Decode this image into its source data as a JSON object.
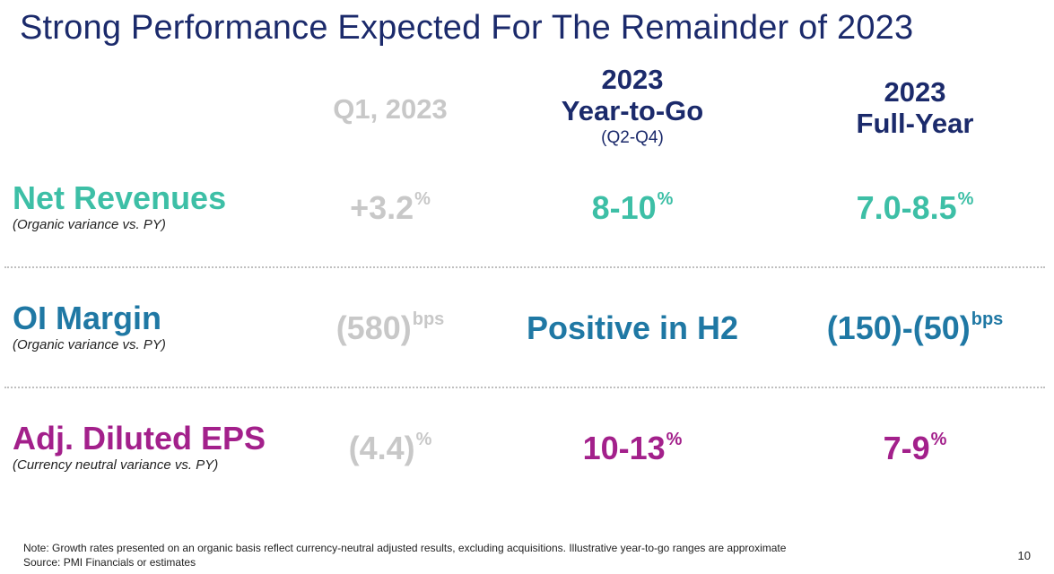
{
  "title": "Strong Performance Expected For The Remainder of 2023",
  "columns": {
    "q1": "Q1, 2023",
    "ytg_year": "2023",
    "ytg_label": "Year-to-Go",
    "ytg_sub": "(Q2-Q4)",
    "fy_year": "2023",
    "fy_label": "Full-Year"
  },
  "rows": [
    {
      "name": "Net Revenues",
      "desc": "(Organic variance vs. PY)",
      "color": "#3dbfa6",
      "q1": "+3.2",
      "q1_unit": "%",
      "ytg": "8-10",
      "ytg_unit": "%",
      "fy": "7.0-8.5",
      "fy_unit": "%"
    },
    {
      "name": "OI Margin",
      "desc": "(Organic variance vs. PY)",
      "color": "#1f78a4",
      "q1": "(580)",
      "q1_unit": "bps",
      "ytg": "Positive in H2",
      "ytg_unit": "",
      "fy": "(150)-(50)",
      "fy_unit": "bps"
    },
    {
      "name": "Adj. Diluted EPS",
      "desc": "(Currency neutral variance vs. PY)",
      "color": "#a3208b",
      "q1": "(4.4)",
      "q1_unit": "%",
      "ytg": "10-13",
      "ytg_unit": "%",
      "fy": "7-9",
      "fy_unit": "%"
    }
  ],
  "footer": {
    "note": "Note: Growth rates presented on an organic basis reflect currency-neutral adjusted results, excluding acquisitions. Illustrative year-to-go ranges are approximate",
    "source": "Source: PMI Financials or estimates"
  },
  "page_number": "10"
}
